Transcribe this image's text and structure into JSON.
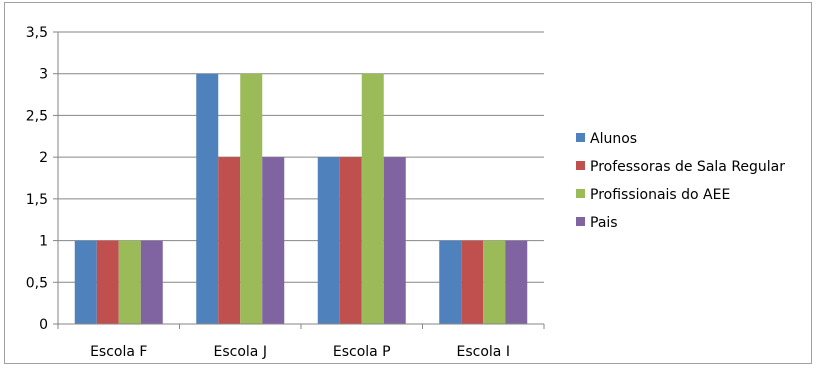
{
  "chart_data": {
    "type": "bar",
    "categories": [
      "Escola F",
      "Escola J",
      "Escola P",
      "Escola I"
    ],
    "series": [
      {
        "name": "Alunos",
        "color": "#4F81BD",
        "values": [
          1,
          3,
          2,
          1
        ]
      },
      {
        "name": "Professoras de Sala Regular",
        "color": "#C0504D",
        "values": [
          1,
          2,
          2,
          1
        ]
      },
      {
        "name": "Profissionais do AEE",
        "color": "#9BBB59",
        "values": [
          1,
          3,
          3,
          1
        ]
      },
      {
        "name": "Pais",
        "color": "#8064A2",
        "values": [
          1,
          2,
          2,
          1
        ]
      }
    ],
    "ylim": [
      0,
      3.5
    ],
    "yticks": [
      "0",
      "0,5",
      "1",
      "1,5",
      "2",
      "2,5",
      "3",
      "3,5"
    ],
    "title": "",
    "xlabel": "",
    "ylabel": "",
    "grid": true,
    "legend_position": "right"
  }
}
